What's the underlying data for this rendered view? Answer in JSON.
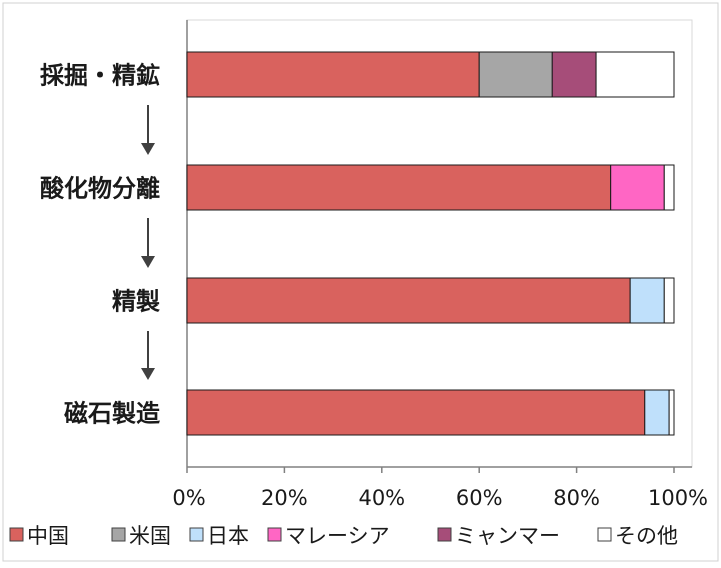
{
  "chart_data": {
    "type": "bar",
    "orientation": "horizontal",
    "stacked": true,
    "normalized": true,
    "categories": [
      "採掘・精鉱",
      "酸化物分離",
      "精製",
      "磁石製造"
    ],
    "series": [
      {
        "name": "中国",
        "color": "#d9625e",
        "values": [
          60,
          87,
          91,
          94
        ]
      },
      {
        "name": "米国",
        "color": "#a6a6a6",
        "values": [
          15,
          0,
          0,
          0
        ]
      },
      {
        "name": "日本",
        "color": "#bfe0fb",
        "values": [
          0,
          0,
          7,
          5
        ]
      },
      {
        "name": "マレーシア",
        "color": "#ff66c4",
        "values": [
          0,
          11,
          0,
          0
        ]
      },
      {
        "name": "ミャンマー",
        "color": "#a64d79",
        "values": [
          9,
          0,
          0,
          0
        ]
      },
      {
        "name": "その他",
        "color": "#ffffff",
        "values": [
          16,
          2,
          2,
          1
        ]
      }
    ],
    "xlim": [
      0,
      100
    ],
    "x_ticks": [
      "0%",
      "20%",
      "40%",
      "60%",
      "80%",
      "100%"
    ],
    "grid": false,
    "legend_position": "bottom",
    "flow_arrows": true
  }
}
